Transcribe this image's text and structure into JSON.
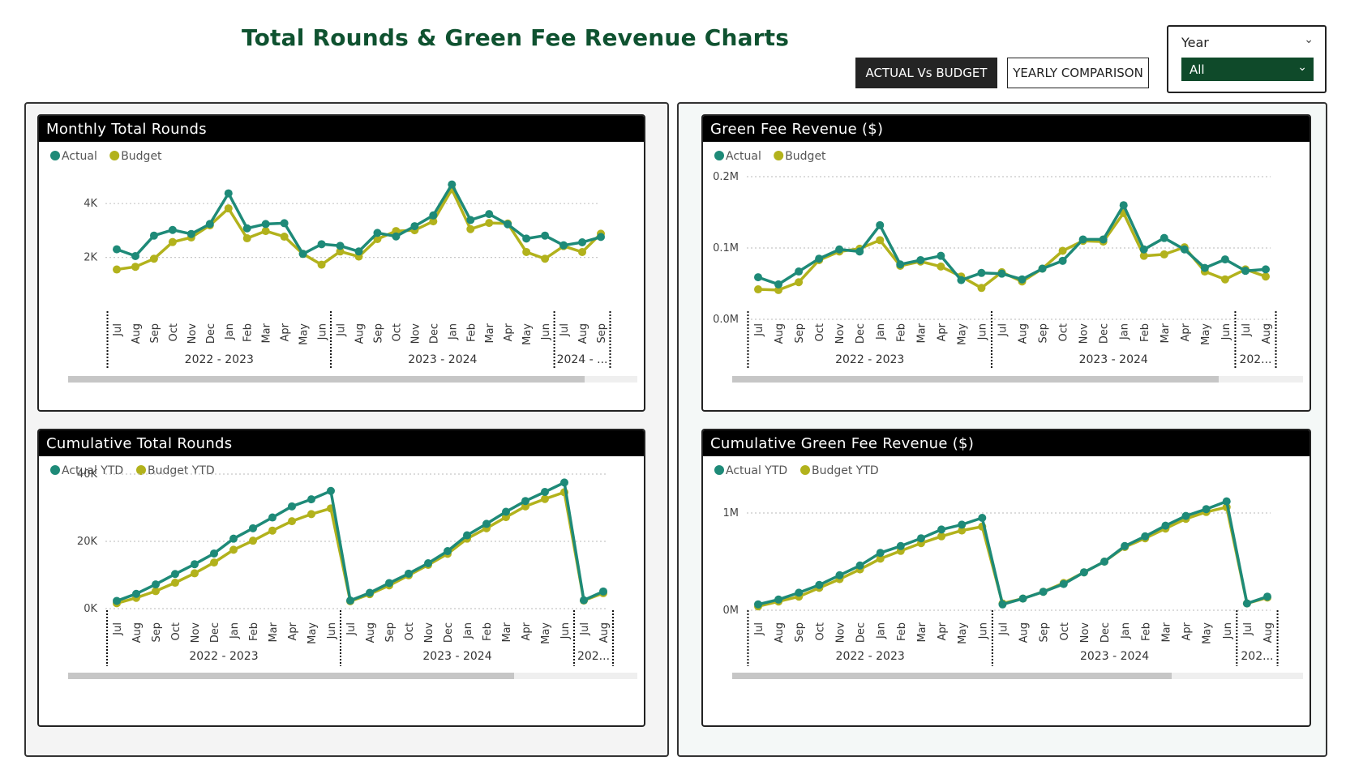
{
  "header": {
    "title": "Total Rounds & Green Fee Revenue Charts",
    "buttons": {
      "actual_vs_budget": "ACTUAL Vs BUDGET",
      "yearly_comparison": "YEARLY COMPARISON"
    },
    "year_slicer": {
      "title": "Year",
      "selected": "All"
    }
  },
  "colors": {
    "actual": "#1e8a78",
    "budget": "#b2b21c"
  },
  "chart_data": [
    {
      "id": "monthly-total-rounds",
      "type": "line",
      "title": "Monthly Total Rounds",
      "legend": [
        "Actual",
        "Budget"
      ],
      "legend_position": "top-left",
      "grid": true,
      "x": [
        "Jul",
        "Aug",
        "Sep",
        "Oct",
        "Nov",
        "Dec",
        "Jan",
        "Feb",
        "Mar",
        "Apr",
        "May",
        "Jun",
        "Jul",
        "Aug",
        "Sep",
        "Oct",
        "Nov",
        "Dec",
        "Jan",
        "Feb",
        "Mar",
        "Apr",
        "May",
        "Jun",
        "Jul",
        "Aug",
        "Sep"
      ],
      "groups": [
        {
          "label": "2022 - 2023",
          "count": 12
        },
        {
          "label": "2023 - 2024",
          "count": 12
        },
        {
          "label": "2024 - ...",
          "count": 3
        }
      ],
      "ylim": [
        0,
        5000
      ],
      "yticks": [
        {
          "v": 2000,
          "label": "2K"
        },
        {
          "v": 4000,
          "label": "4K"
        }
      ],
      "series": [
        {
          "name": "Actual",
          "values": [
            2300,
            2050,
            2810,
            3020,
            2870,
            3240,
            4380,
            3080,
            3240,
            3270,
            2130,
            2490,
            2430,
            2220,
            2910,
            2780,
            3160,
            3560,
            4710,
            3390,
            3610,
            3230,
            2700,
            2810,
            2450,
            2560,
            2760
          ]
        },
        {
          "name": "Budget",
          "values": [
            1550,
            1650,
            1950,
            2570,
            2740,
            3190,
            3820,
            2710,
            2980,
            2770,
            2130,
            1730,
            2220,
            2030,
            2680,
            2980,
            3010,
            3340,
            4530,
            3050,
            3280,
            3260,
            2200,
            1950,
            2420,
            2200,
            2880
          ]
        }
      ]
    },
    {
      "id": "green-fee-revenue",
      "type": "line",
      "title": "Green Fee Revenue ($)",
      "legend": [
        "Actual",
        "Budget"
      ],
      "legend_position": "top-left",
      "grid": true,
      "x": [
        "Jul",
        "Aug",
        "Sep",
        "Oct",
        "Nov",
        "Dec",
        "Jan",
        "Feb",
        "Mar",
        "Apr",
        "May",
        "Jun",
        "Jul",
        "Aug",
        "Sep",
        "Oct",
        "Nov",
        "Dec",
        "Jan",
        "Feb",
        "Mar",
        "Apr",
        "May",
        "Jun",
        "Jul",
        "Aug"
      ],
      "groups": [
        {
          "label": "2022 - 2023",
          "count": 12
        },
        {
          "label": "2023 - 2024",
          "count": 12
        },
        {
          "label": "202...",
          "count": 2
        }
      ],
      "ylim": [
        0,
        0.2
      ],
      "yticks": [
        {
          "v": 0,
          "label": "0.0M"
        },
        {
          "v": 0.1,
          "label": "0.1M"
        },
        {
          "v": 0.2,
          "label": "0.2M"
        }
      ],
      "series": [
        {
          "name": "Actual",
          "values": [
            0.059,
            0.049,
            0.067,
            0.085,
            0.098,
            0.095,
            0.132,
            0.077,
            0.083,
            0.089,
            0.055,
            0.065,
            0.064,
            0.056,
            0.071,
            0.082,
            0.112,
            0.112,
            0.16,
            0.098,
            0.114,
            0.098,
            0.072,
            0.084,
            0.068,
            0.07
          ]
        },
        {
          "name": "Budget",
          "values": [
            0.042,
            0.041,
            0.052,
            0.083,
            0.095,
            0.099,
            0.111,
            0.075,
            0.081,
            0.074,
            0.06,
            0.044,
            0.066,
            0.053,
            0.071,
            0.096,
            0.11,
            0.109,
            0.149,
            0.089,
            0.091,
            0.101,
            0.067,
            0.056,
            0.07,
            0.06
          ]
        }
      ]
    },
    {
      "id": "cumulative-total-rounds",
      "type": "line",
      "title": "Cumulative Total Rounds",
      "legend": [
        "Actual YTD",
        "Budget YTD"
      ],
      "legend_position": "top-left",
      "grid": true,
      "x": [
        "Jul",
        "Aug",
        "Sep",
        "Oct",
        "Nov",
        "Dec",
        "Jan",
        "Feb",
        "Mar",
        "Apr",
        "May",
        "Jun",
        "Jul",
        "Aug",
        "Sep",
        "Oct",
        "Nov",
        "Dec",
        "Jan",
        "Feb",
        "Mar",
        "Apr",
        "May",
        "Jun",
        "Jul",
        "Aug"
      ],
      "groups": [
        {
          "label": "2022 - 2023",
          "count": 12
        },
        {
          "label": "2023 - 2024",
          "count": 12
        },
        {
          "label": "202...",
          "count": 2
        }
      ],
      "ylim": [
        0,
        40000
      ],
      "yticks": [
        {
          "v": 0,
          "label": "0K"
        },
        {
          "v": 20000,
          "label": "20K"
        },
        {
          "v": 40000,
          "label": "40K"
        }
      ],
      "series": [
        {
          "name": "Actual YTD",
          "values": [
            2300,
            4400,
            7200,
            10300,
            13200,
            16400,
            20800,
            23900,
            27100,
            30400,
            32500,
            35000,
            2400,
            4700,
            7600,
            10400,
            13500,
            17100,
            21800,
            25200,
            28800,
            32000,
            34700,
            37500,
            2500,
            5100
          ]
        },
        {
          "name": "Budget YTD",
          "values": [
            1600,
            3200,
            5200,
            7700,
            10500,
            13700,
            17500,
            20200,
            23200,
            26000,
            28100,
            29800,
            2200,
            4300,
            6900,
            9900,
            13000,
            16300,
            20800,
            23900,
            27200,
            30400,
            32600,
            34600,
            2400,
            4600
          ]
        }
      ]
    },
    {
      "id": "cumulative-green-fee-revenue",
      "type": "line",
      "title": "Cumulative Green Fee Revenue ($)",
      "legend": [
        "Actual YTD",
        "Budget YTD"
      ],
      "legend_position": "top-left",
      "grid": true,
      "x": [
        "Jul",
        "Aug",
        "Sep",
        "Oct",
        "Nov",
        "Dec",
        "Jan",
        "Feb",
        "Mar",
        "Apr",
        "May",
        "Jun",
        "Jul",
        "Aug",
        "Sep",
        "Oct",
        "Nov",
        "Dec",
        "Jan",
        "Feb",
        "Mar",
        "Apr",
        "May",
        "Jun",
        "Jul",
        "Aug"
      ],
      "groups": [
        {
          "label": "2022 - 2023",
          "count": 12
        },
        {
          "label": "2023 - 2024",
          "count": 12
        },
        {
          "label": "202...",
          "count": 2
        }
      ],
      "ylim": [
        0,
        1.4
      ],
      "yticks": [
        {
          "v": 0,
          "label": "0M"
        },
        {
          "v": 1,
          "label": "1M"
        }
      ],
      "series": [
        {
          "name": "Actual YTD",
          "values": [
            0.06,
            0.11,
            0.18,
            0.26,
            0.36,
            0.46,
            0.59,
            0.66,
            0.74,
            0.83,
            0.88,
            0.95,
            0.06,
            0.12,
            0.19,
            0.27,
            0.39,
            0.5,
            0.66,
            0.76,
            0.87,
            0.97,
            1.04,
            1.12,
            0.07,
            0.14
          ]
        },
        {
          "name": "Budget YTD",
          "values": [
            0.04,
            0.09,
            0.14,
            0.23,
            0.32,
            0.42,
            0.53,
            0.61,
            0.69,
            0.76,
            0.82,
            0.86,
            0.07,
            0.12,
            0.19,
            0.28,
            0.39,
            0.5,
            0.65,
            0.74,
            0.84,
            0.94,
            1.01,
            1.06,
            0.07,
            0.13
          ]
        }
      ]
    }
  ]
}
